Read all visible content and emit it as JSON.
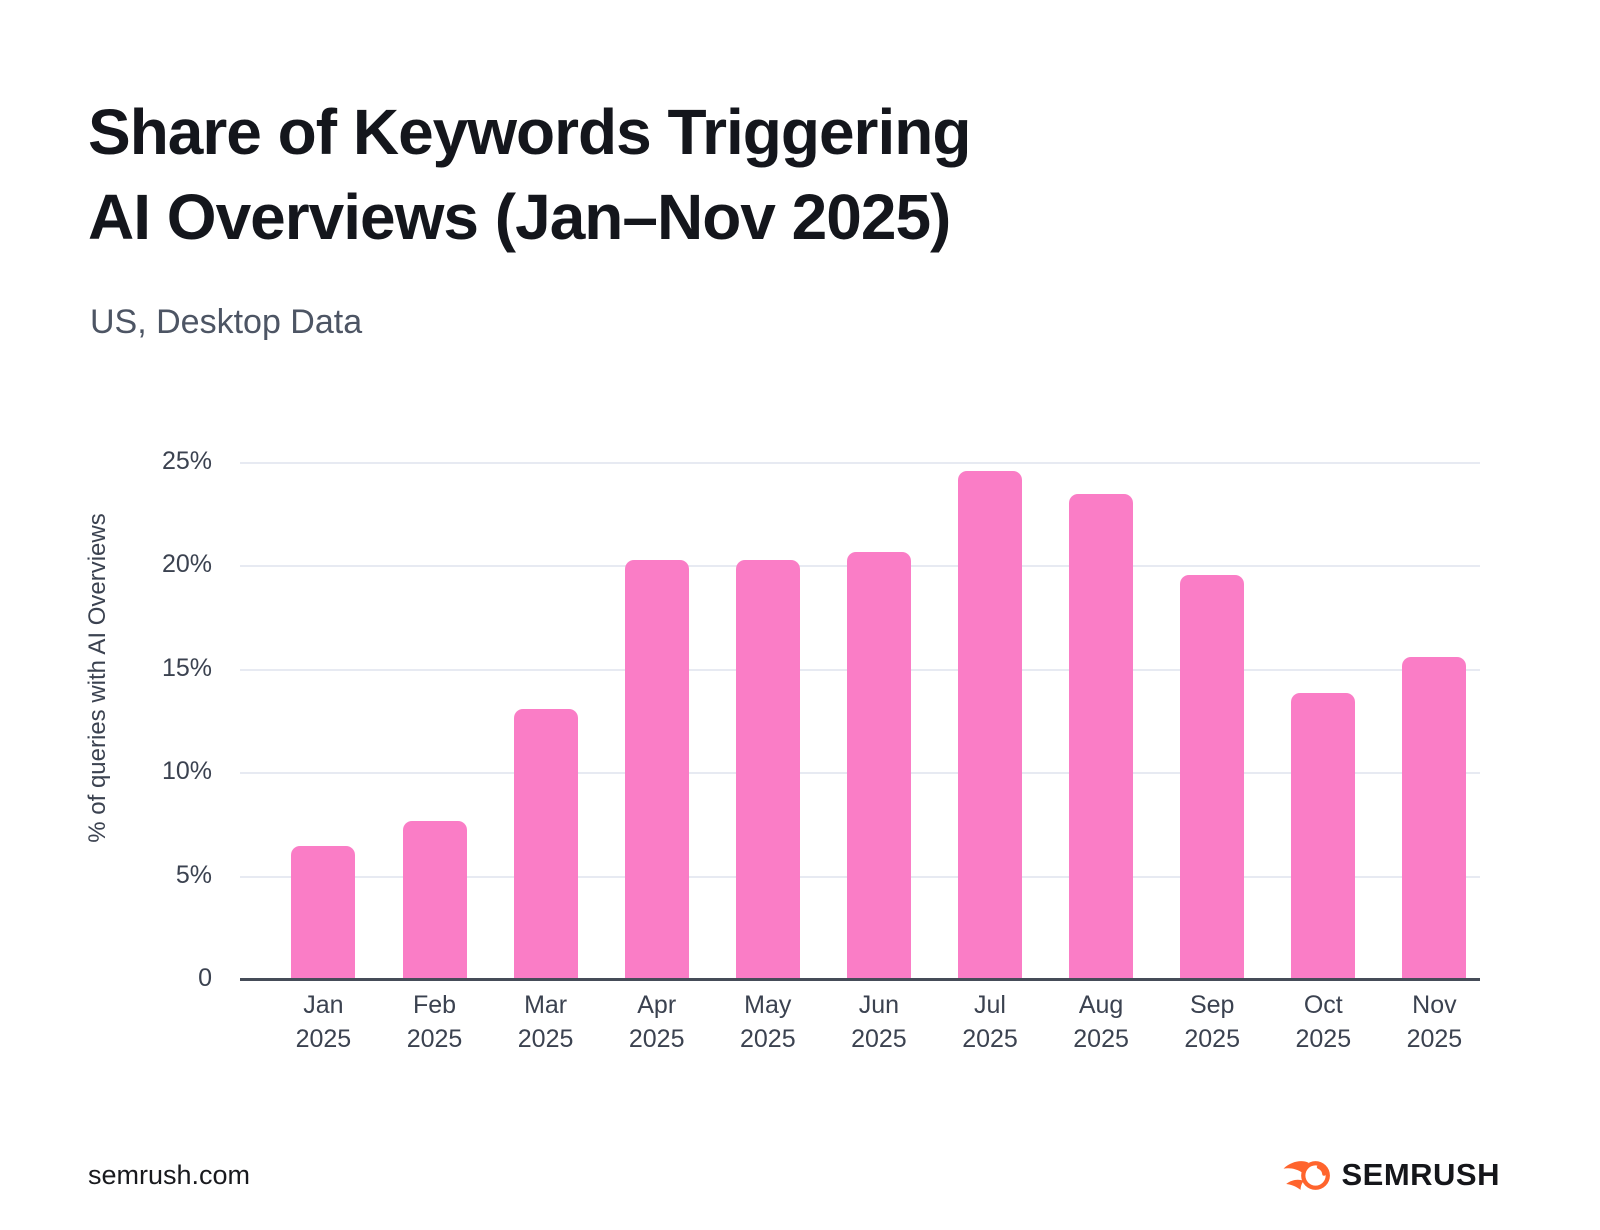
{
  "page": {
    "title_line1": "Share of Keywords Triggering",
    "title_line2": "AI Overviews (Jan–Nov 2025)",
    "subtitle": "US, Desktop Data",
    "footer_site": "semrush.com",
    "brand_wordmark": "SEMRUSH"
  },
  "colors": {
    "bar": "#fa7dc6",
    "gridline": "#e7eaf2",
    "axis_line": "#454c58",
    "title_text": "#14161c",
    "subtitle_text": "#4d5564",
    "tick_text": "#3b4250",
    "brand_orange": "#ff642d"
  },
  "chart_data": {
    "type": "bar",
    "title": "Share of Keywords Triggering AI Overviews (Jan–Nov 2025)",
    "subtitle": "US, Desktop Data",
    "ylabel": "% of queries with AI Overviews",
    "xlabel": "",
    "categories": [
      "Jan 2025",
      "Feb 2025",
      "Mar 2025",
      "Apr 2025",
      "May 2025",
      "Jun 2025",
      "Jul 2025",
      "Aug 2025",
      "Sep 2025",
      "Oct 2025",
      "Nov 2025"
    ],
    "month_labels": [
      "Jan",
      "Feb",
      "Mar",
      "Apr",
      "May",
      "Jun",
      "Jul",
      "Aug",
      "Sep",
      "Oct",
      "Nov"
    ],
    "year_label": "2025",
    "values": [
      6.5,
      7.7,
      13.1,
      20.3,
      20.3,
      20.7,
      24.6,
      23.5,
      19.6,
      13.9,
      15.6
    ],
    "unit": "%",
    "ylim": [
      0,
      25
    ],
    "ytick_values": [
      0,
      5,
      10,
      15,
      20,
      25
    ],
    "ytick_labels": [
      "0",
      "5%",
      "10%",
      "15%",
      "20%",
      "25%"
    ],
    "grid": true,
    "legend": false,
    "bar_color": "#fa7dc6"
  }
}
